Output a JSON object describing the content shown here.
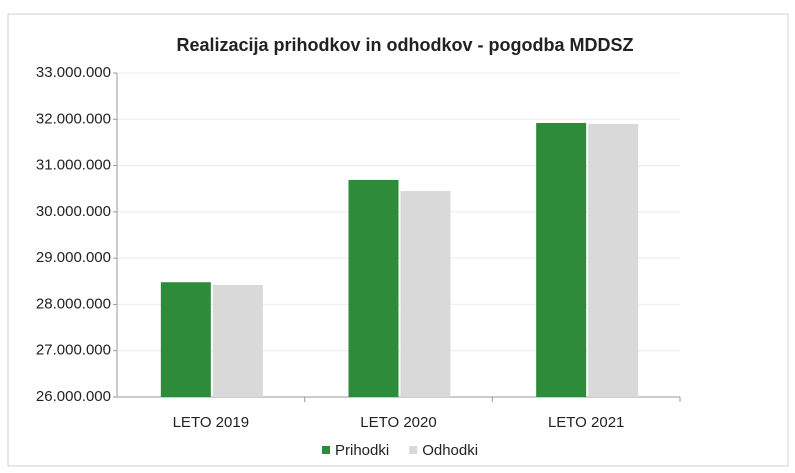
{
  "chart_data": {
    "type": "bar",
    "title": "Realizacija prihodkov in odhodkov - pogodba MDDSZ",
    "categories": [
      "LETO 2019",
      "LETO 2020",
      "LETO 2021"
    ],
    "series": [
      {
        "name": "Prihodki",
        "color": "#2e8b3a",
        "values": [
          28480000,
          30690000,
          31920000
        ]
      },
      {
        "name": "Odhodki",
        "color": "#d9d9d9",
        "values": [
          28420000,
          30450000,
          31900000
        ]
      }
    ],
    "ylim": [
      26000000,
      33000000
    ],
    "yticks": [
      {
        "value": 26000000,
        "label": "26.000.000"
      },
      {
        "value": 27000000,
        "label": "27.000.000"
      },
      {
        "value": 28000000,
        "label": "28.000.000"
      },
      {
        "value": 29000000,
        "label": "29.000.000"
      },
      {
        "value": 30000000,
        "label": "30.000.000"
      },
      {
        "value": 31000000,
        "label": "31.000.000"
      },
      {
        "value": 32000000,
        "label": "32.000.000"
      },
      {
        "value": 33000000,
        "label": "33.000.000"
      }
    ],
    "grid": true,
    "legend": "bottom"
  }
}
